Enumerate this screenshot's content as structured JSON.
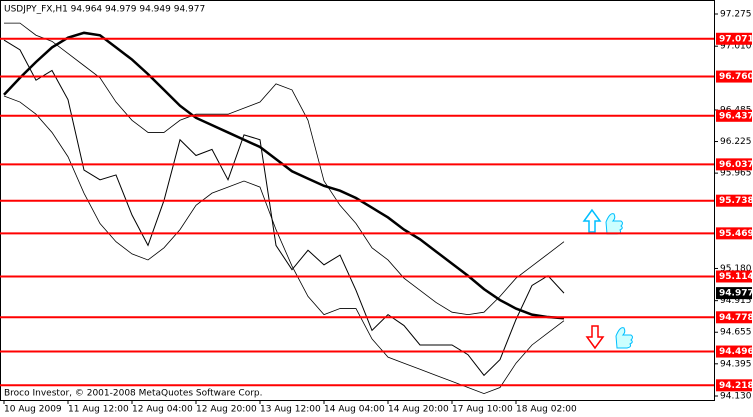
{
  "chart_data": {
    "type": "line",
    "title": "USDJPY_FX,H1  94.964 94.979 94.949 94.977",
    "footer": "Broco Investor, © 2001-2008 MetaQuotes Software Corp.",
    "categories": [
      "10 Aug 2009",
      null,
      null,
      null,
      "11 Aug 12:00",
      null,
      null,
      null,
      "12 Aug 04:00",
      null,
      null,
      null,
      "12 Aug 20:00",
      null,
      null,
      null,
      "13 Aug 12:00",
      null,
      null,
      null,
      "14 Aug 04:00",
      null,
      null,
      null,
      "14 Aug 20:00",
      null,
      null,
      null,
      "17 Aug 10:00",
      null,
      null,
      null,
      "18 Aug 02:00",
      null,
      null,
      null
    ],
    "series": [
      {
        "color": "#000000",
        "width": 1,
        "values": [
          97.06,
          96.98,
          96.73,
          96.81,
          96.57,
          95.99,
          95.91,
          95.95,
          95.62,
          95.37,
          95.74,
          96.24,
          96.11,
          96.16,
          95.91,
          96.28,
          96.24,
          95.37,
          95.17,
          95.33,
          95.21,
          95.29,
          95.0,
          94.67,
          94.8,
          94.71,
          94.55,
          94.55,
          94.55,
          94.47,
          94.3,
          94.43,
          94.76,
          95.04,
          95.12,
          94.977
        ]
      },
      {
        "color": "#000000",
        "width": 2.5,
        "values": [
          96.61,
          96.75,
          96.88,
          97.0,
          97.08,
          97.12,
          97.1,
          97.0,
          96.9,
          96.78,
          96.65,
          96.52,
          96.42,
          96.36,
          96.3,
          96.24,
          96.18,
          96.08,
          95.98,
          95.92,
          95.86,
          95.82,
          95.76,
          95.68,
          95.6,
          95.5,
          95.42,
          95.32,
          95.22,
          95.12,
          95.01,
          94.92,
          94.85,
          94.8,
          94.78,
          94.77
        ]
      },
      {
        "color": "#000000",
        "width": 0.8,
        "values": [
          97.2,
          97.2,
          97.1,
          97.05,
          96.95,
          96.85,
          96.75,
          96.55,
          96.4,
          96.3,
          96.3,
          96.4,
          96.45,
          96.45,
          96.45,
          96.5,
          96.55,
          96.7,
          96.65,
          96.4,
          95.9,
          95.7,
          95.55,
          95.35,
          95.25,
          95.1,
          95.0,
          94.9,
          94.82,
          94.8,
          94.82,
          94.95,
          95.1,
          95.2,
          95.3,
          95.4
        ]
      },
      {
        "color": "#000000",
        "width": 0.8,
        "values": [
          96.6,
          96.55,
          96.45,
          96.3,
          96.1,
          95.8,
          95.55,
          95.4,
          95.3,
          95.25,
          95.35,
          95.5,
          95.7,
          95.8,
          95.85,
          95.9,
          95.85,
          95.5,
          95.2,
          94.95,
          94.8,
          94.85,
          94.85,
          94.6,
          94.45,
          94.4,
          94.35,
          94.3,
          94.25,
          94.2,
          94.15,
          94.2,
          94.4,
          94.55,
          94.65,
          94.75
        ]
      }
    ],
    "ylim": [
      94.13,
      97.275
    ],
    "yticks": [
      97.275,
      {
        "value": 97.01,
        "label": "97.010"
      },
      96.485,
      96.225,
      95.965,
      {
        "value": 95.18,
        "label": "95.180"
      },
      94.915,
      94.655,
      94.395,
      {
        "value": 94.13,
        "label": "94.130"
      }
    ],
    "levels": [
      97.071,
      {
        "value": 96.76,
        "label": "96.760"
      },
      96.437,
      96.037,
      95.738,
      95.469,
      95.114,
      94.778,
      94.496,
      94.218
    ],
    "level_color": "#ff0000",
    "last_price": 94.977
  }
}
